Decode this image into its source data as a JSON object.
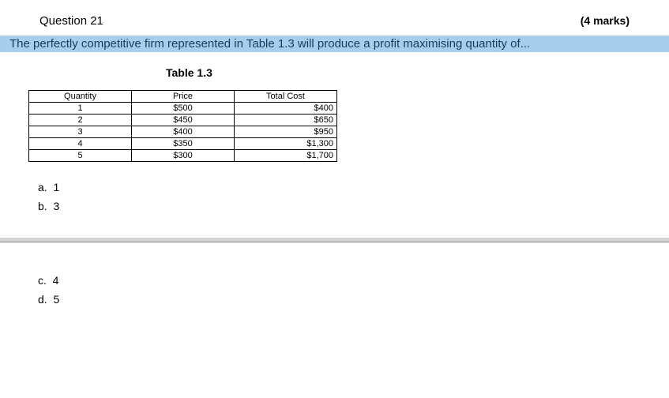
{
  "header": {
    "question_label": "Question 21",
    "marks_label": "(4 marks)"
  },
  "prompt_highlight": "The perfectly competitive firm represented in Table 1.3 will produce a profit maximising quantity of...",
  "table_caption": "Table 1.3",
  "table": {
    "headers": [
      "Quantity",
      "Price",
      "Total Cost"
    ],
    "rows": [
      [
        "1",
        "$500",
        "$400"
      ],
      [
        "2",
        "$450",
        "$650"
      ],
      [
        "3",
        "$400",
        "$950"
      ],
      [
        "4",
        "$350",
        "$1,300"
      ],
      [
        "5",
        "$300",
        "$1,700"
      ]
    ]
  },
  "options_top": [
    {
      "letter": "a.",
      "value": "1"
    },
    {
      "letter": "b.",
      "value": "3"
    }
  ],
  "options_bottom": [
    {
      "letter": "c.",
      "value": "4"
    },
    {
      "letter": "d.",
      "value": "5"
    }
  ],
  "colors": {
    "highlight_bg": "#a8ceee",
    "highlight_text": "#1a3a5c",
    "divider_bg": "#d4d4d4"
  }
}
